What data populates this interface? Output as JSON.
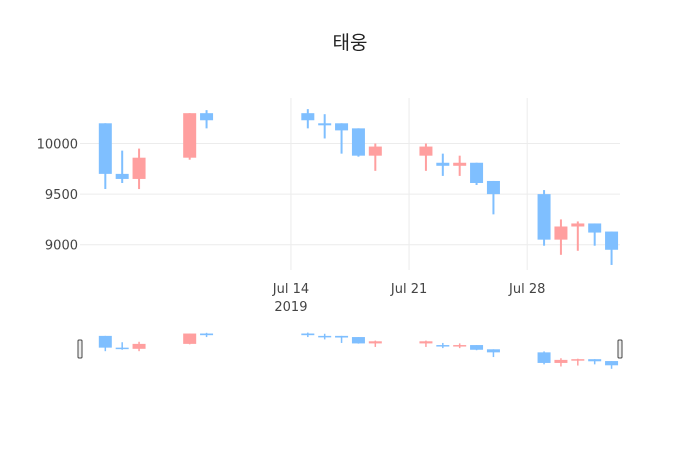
{
  "chart_data": {
    "type": "candlestick",
    "title": "태웅",
    "xlabel": "",
    "ylabel": "",
    "ylim": [
      8750,
      10450
    ],
    "xlim": [
      "2019-07-02",
      "2019-08-02"
    ],
    "y_ticks": [
      9000,
      9500,
      10000
    ],
    "y_tick_labels": [
      "9000",
      "9500",
      "10000"
    ],
    "x_ticks": [
      "2019-07-14",
      "2019-07-21",
      "2019-07-28"
    ],
    "x_tick_labels": [
      "Jul 14",
      "Jul 21",
      "Jul 28"
    ],
    "x_tick_sublabel": "2019",
    "grid": true,
    "legend": "none",
    "rangeslider": true,
    "colors": {
      "increasing": "#ff9f9f",
      "decreasing": "#7fbfff",
      "grid": "#ececec"
    },
    "candles": [
      {
        "date": "2019-07-03",
        "open": 10200,
        "high": 10200,
        "low": 9550,
        "close": 9700
      },
      {
        "date": "2019-07-04",
        "open": 9700,
        "high": 9930,
        "low": 9610,
        "close": 9650
      },
      {
        "date": "2019-07-05",
        "open": 9650,
        "high": 9950,
        "low": 9550,
        "close": 9860
      },
      {
        "date": "2019-07-08",
        "open": 9860,
        "high": 10300,
        "low": 9840,
        "close": 10300
      },
      {
        "date": "2019-07-09",
        "open": 10300,
        "high": 10330,
        "low": 10150,
        "close": 10230
      },
      {
        "date": "2019-07-15",
        "open": 10300,
        "high": 10340,
        "low": 10150,
        "close": 10230
      },
      {
        "date": "2019-07-16",
        "open": 10200,
        "high": 10290,
        "low": 10050,
        "close": 10180
      },
      {
        "date": "2019-07-17",
        "open": 10200,
        "high": 10200,
        "low": 9900,
        "close": 10130
      },
      {
        "date": "2019-07-18",
        "open": 10150,
        "high": 10150,
        "low": 9870,
        "close": 9880
      },
      {
        "date": "2019-07-19",
        "open": 9880,
        "high": 10000,
        "low": 9730,
        "close": 9970
      },
      {
        "date": "2019-07-22",
        "open": 9880,
        "high": 10000,
        "low": 9730,
        "close": 9970
      },
      {
        "date": "2019-07-23",
        "open": 9810,
        "high": 9900,
        "low": 9680,
        "close": 9780
      },
      {
        "date": "2019-07-24",
        "open": 9780,
        "high": 9880,
        "low": 9680,
        "close": 9810
      },
      {
        "date": "2019-07-25",
        "open": 9810,
        "high": 9810,
        "low": 9590,
        "close": 9610
      },
      {
        "date": "2019-07-26",
        "open": 9630,
        "high": 9630,
        "low": 9300,
        "close": 9500
      },
      {
        "date": "2019-07-29",
        "open": 9500,
        "high": 9540,
        "low": 8990,
        "close": 9050
      },
      {
        "date": "2019-07-30",
        "open": 9050,
        "high": 9250,
        "low": 8900,
        "close": 9180
      },
      {
        "date": "2019-07-31",
        "open": 9180,
        "high": 9230,
        "low": 8940,
        "close": 9210
      },
      {
        "date": "2019-08-01",
        "open": 9210,
        "high": 9210,
        "low": 8990,
        "close": 9120
      },
      {
        "date": "2019-08-02",
        "open": 9130,
        "high": 9130,
        "low": 8800,
        "close": 8950
      }
    ]
  }
}
